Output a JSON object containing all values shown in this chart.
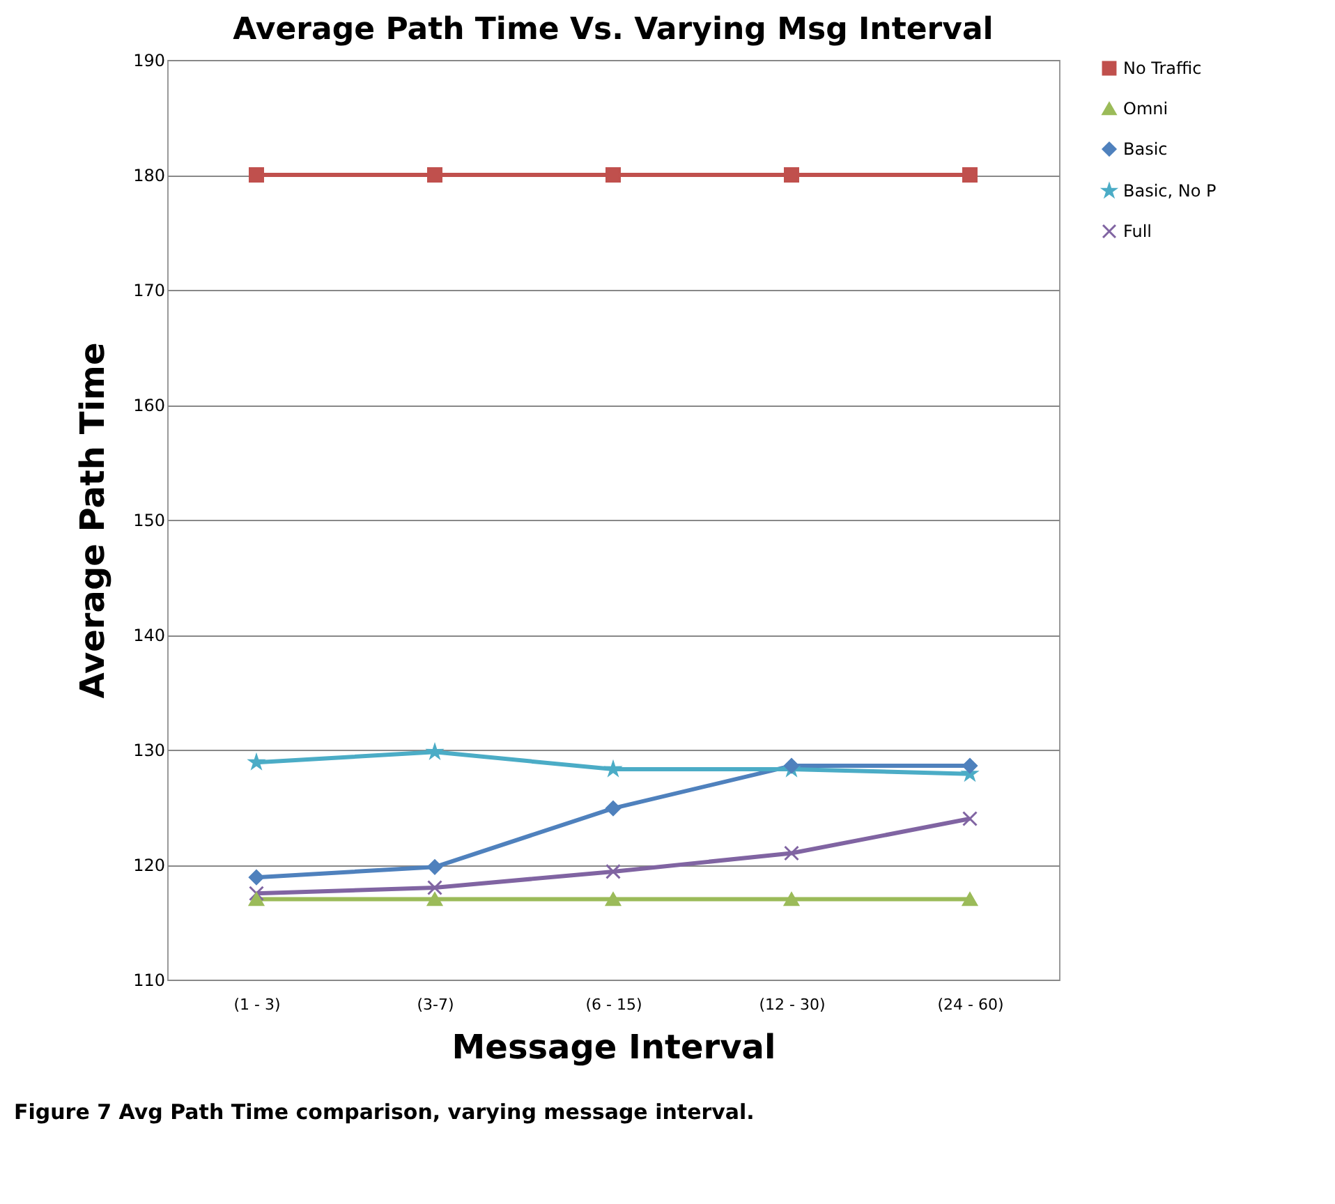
{
  "chart_data": {
    "type": "line",
    "title": "Average Path Time Vs. Varying Msg Interval",
    "xlabel": "Message Interval",
    "ylabel": "Average Path Time",
    "categories": [
      "(1 - 3)",
      "(3-7)",
      "(6 - 15)",
      "(12 - 30)",
      "(24 - 60)"
    ],
    "series": [
      {
        "name": "No Traffic",
        "color": "#c0504d",
        "marker": "square",
        "values": [
          180,
          180,
          180,
          180,
          180
        ]
      },
      {
        "name": "Omni",
        "color": "#9bbb59",
        "marker": "triangle",
        "values": [
          117,
          117,
          117,
          117,
          117
        ]
      },
      {
        "name": "Basic",
        "color": "#4f81bd",
        "marker": "diamond",
        "values": [
          118.9,
          119.8,
          124.9,
          128.6,
          128.6
        ]
      },
      {
        "name": "Basic, No P",
        "color": "#4bacc6",
        "marker": "star",
        "values": [
          128.9,
          129.8,
          128.3,
          128.3,
          127.9
        ]
      },
      {
        "name": "Full",
        "color": "#8064a2",
        "marker": "cross",
        "values": [
          117.5,
          118,
          119.4,
          121,
          124
        ]
      }
    ],
    "ylim": [
      110,
      190
    ],
    "yticks": [
      110,
      120,
      130,
      140,
      150,
      160,
      170,
      180,
      190
    ],
    "grid": "y",
    "legend": "right",
    "line_style": "solid",
    "annotations": [
      "Figure 7 Avg Path Time comparison, varying message interval."
    ]
  }
}
